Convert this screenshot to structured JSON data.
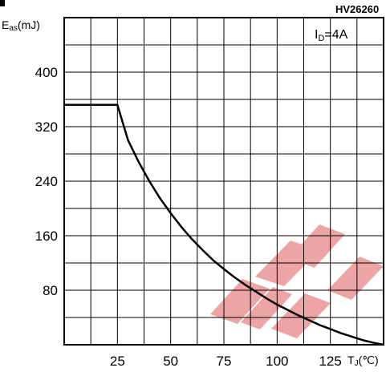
{
  "part_number": "HV26260",
  "condition": "I",
  "condition_sub": "D",
  "condition_value": "=4A",
  "watermark_color": "#e05a5a",
  "chart_data": {
    "type": "line",
    "title": "",
    "xlabel": "T",
    "xlabel_sub": "J",
    "xlabel_unit": "(℃)",
    "ylabel": "E",
    "ylabel_sub": "as",
    "ylabel_unit": "(mJ)",
    "xlim": [
      0,
      150
    ],
    "ylim": [
      0,
      480
    ],
    "x_ticks": [
      25,
      50,
      75,
      100,
      125
    ],
    "y_ticks": [
      80,
      160,
      240,
      320,
      400
    ],
    "x_tick_labels": [
      "25",
      "50",
      "75",
      "100",
      "125"
    ],
    "y_tick_labels": [
      "80",
      "160",
      "240",
      "320",
      "400"
    ],
    "x_grid": [
      12.5,
      25,
      37.5,
      50,
      62.5,
      75,
      87.5,
      100,
      112.5,
      125,
      137.5
    ],
    "y_grid": [
      40,
      80,
      120,
      160,
      200,
      240,
      280,
      320,
      360,
      400,
      440
    ],
    "grid": true,
    "series": [
      {
        "x": [
          0,
          25,
          30,
          35,
          40,
          45,
          50,
          55,
          60,
          65,
          70,
          75,
          80,
          85,
          90,
          95,
          100,
          105,
          110,
          115,
          120,
          125,
          130,
          135,
          140,
          145,
          150
        ],
        "y": [
          352,
          352,
          300,
          268,
          240,
          215,
          193,
          173,
          155,
          139,
          124,
          111,
          99,
          88,
          78,
          68,
          59,
          51,
          43,
          36,
          29,
          23,
          17,
          12,
          7,
          3,
          0
        ]
      }
    ]
  }
}
